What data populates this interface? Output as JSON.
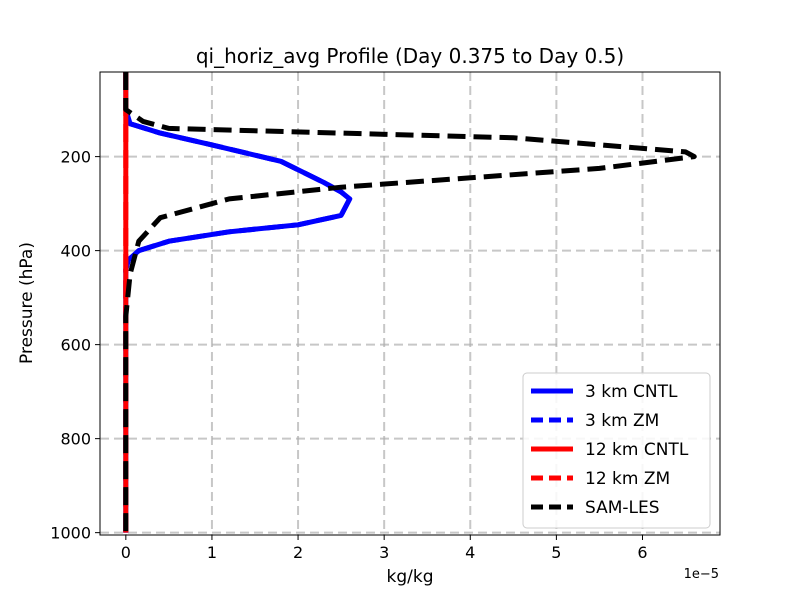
{
  "chart_data": {
    "type": "line",
    "title": "qi_horiz_avg Profile (Day 0.375 to Day 0.5)",
    "xlabel": "kg/kg",
    "ylabel": "Pressure (hPa)",
    "x_offset_text": "1e−5",
    "x_scale_note": "x values are in units of 1e-5 kg/kg",
    "xlim": [
      -0.3,
      6.9
    ],
    "ylim": [
      1005,
      20
    ],
    "y_inverted": true,
    "x_ticks": [
      0,
      1,
      2,
      3,
      4,
      5,
      6
    ],
    "x_tick_labels": [
      "0",
      "1",
      "2",
      "3",
      "4",
      "5",
      "6"
    ],
    "y_ticks": [
      200,
      400,
      600,
      800,
      1000
    ],
    "y_tick_labels": [
      "200",
      "400",
      "600",
      "800",
      "1000"
    ],
    "grid": true,
    "legend_position": "bottom-right",
    "series": [
      {
        "name": "3 km CNTL",
        "color": "#0000ff",
        "dash": "solid",
        "points": [
          [
            0,
            20
          ],
          [
            0,
            100
          ],
          [
            0.05,
            130
          ],
          [
            0.4,
            150
          ],
          [
            1.0,
            175
          ],
          [
            1.8,
            210
          ],
          [
            2.3,
            255
          ],
          [
            2.5,
            275
          ],
          [
            2.6,
            290
          ],
          [
            2.5,
            325
          ],
          [
            2.0,
            345
          ],
          [
            1.2,
            360
          ],
          [
            0.5,
            380
          ],
          [
            0.15,
            400
          ],
          [
            0.03,
            420
          ],
          [
            0,
            440
          ],
          [
            0,
            1000
          ]
        ]
      },
      {
        "name": "3 km ZM",
        "color": "#0000ff",
        "dash": "dashed",
        "points": [
          [
            0,
            20
          ],
          [
            0,
            100
          ],
          [
            0.05,
            130
          ],
          [
            0.4,
            150
          ],
          [
            1.0,
            175
          ],
          [
            1.8,
            210
          ],
          [
            2.3,
            255
          ],
          [
            2.5,
            275
          ],
          [
            2.6,
            290
          ],
          [
            2.5,
            325
          ],
          [
            2.0,
            345
          ],
          [
            1.2,
            360
          ],
          [
            0.5,
            380
          ],
          [
            0.15,
            400
          ],
          [
            0.03,
            420
          ],
          [
            0,
            440
          ],
          [
            0,
            1000
          ]
        ]
      },
      {
        "name": "12 km CNTL",
        "color": "#ff0000",
        "dash": "solid",
        "points": [
          [
            0,
            20
          ],
          [
            0,
            1000
          ]
        ]
      },
      {
        "name": "12 km ZM",
        "color": "#ff0000",
        "dash": "dashed",
        "points": [
          [
            0,
            20
          ],
          [
            0,
            1000
          ]
        ]
      },
      {
        "name": "SAM-LES",
        "color": "#000000",
        "dash": "dashed",
        "points": [
          [
            0,
            20
          ],
          [
            0,
            100
          ],
          [
            0.2,
            125
          ],
          [
            0.5,
            140
          ],
          [
            4.5,
            160
          ],
          [
            6.5,
            190
          ],
          [
            6.6,
            200
          ],
          [
            5.5,
            225
          ],
          [
            2.5,
            265
          ],
          [
            1.2,
            290
          ],
          [
            0.4,
            330
          ],
          [
            0.15,
            380
          ],
          [
            0.05,
            450
          ],
          [
            0,
            540
          ],
          [
            0,
            1000
          ]
        ]
      }
    ]
  }
}
